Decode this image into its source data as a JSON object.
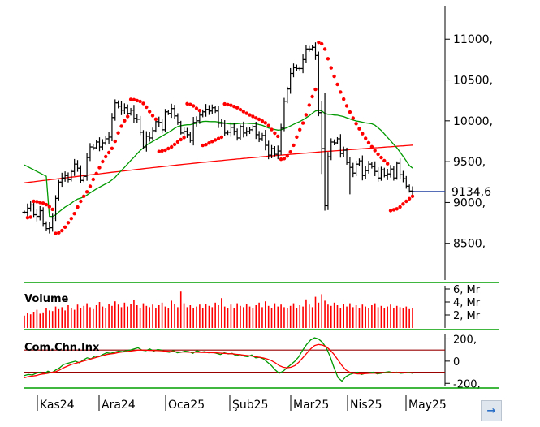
{
  "chart_data": [
    {
      "type": "ohlc",
      "ylim": [
        8050,
        11400
      ],
      "ytick_labels": [
        "11000,",
        "10500,",
        "10000,",
        "9500,",
        "9000,",
        "8500,"
      ],
      "ytick_values": [
        11000,
        10500,
        10000,
        9500,
        9000,
        8500
      ],
      "last_value": 9134.6,
      "last_value_label": "9134,6",
      "x_labels": [
        "Kas24",
        "Ara24",
        "Oca25",
        "Şub25",
        "Mar25",
        "Nis25",
        "May25"
      ],
      "close": [
        8880,
        8930,
        8970,
        8850,
        8830,
        8900,
        8740,
        8680,
        8690,
        8810,
        9050,
        9250,
        9300,
        9330,
        9280,
        9380,
        9470,
        9420,
        9270,
        9320,
        9550,
        9680,
        9670,
        9740,
        9680,
        9730,
        9780,
        9800,
        10040,
        10220,
        10180,
        10130,
        10160,
        10090,
        10130,
        10030,
        10020,
        9860,
        9680,
        9810,
        9790,
        9880,
        9990,
        9980,
        9890,
        10110,
        10090,
        10150,
        10060,
        9980,
        9850,
        9870,
        9830,
        9760,
        9980,
        10000,
        10070,
        10110,
        10140,
        10120,
        10160,
        10120,
        9970,
        9970,
        9850,
        9860,
        9920,
        9870,
        9790,
        9930,
        9850,
        9870,
        9890,
        9930,
        9830,
        9780,
        9820,
        9700,
        9580,
        9660,
        9590,
        9630,
        9910,
        10240,
        10390,
        10580,
        10650,
        10640,
        10640,
        10750,
        10880,
        10880,
        10900,
        10800,
        10100,
        9660,
        8960,
        9560,
        9740,
        9730,
        9780,
        9600,
        9640,
        9490,
        9430,
        9360,
        9470,
        9510,
        9330,
        9390,
        9470,
        9440,
        9380,
        9300,
        9400,
        9330,
        9350,
        9410,
        9300,
        9480,
        9340,
        9290,
        9200,
        9140,
        9134.6
      ],
      "series": [
        {
          "name": "",
          "color": "#ff0000",
          "style": "line",
          "period": 200
        },
        {
          "name": "",
          "color": "#009900",
          "style": "line",
          "period": 50
        },
        {
          "name": "",
          "color": "#ff0000",
          "style": "dots",
          "kind": "parabolic-sar"
        }
      ]
    },
    {
      "type": "bar",
      "title": "Volume",
      "ytick_labels": [
        "6, Mr",
        "4, Mr",
        "2, Mr"
      ],
      "ytick_values": [
        6,
        4,
        2
      ],
      "ylim": [
        0,
        6.5
      ],
      "unit": "Mr",
      "color": "#ff0000",
      "values": [
        1.9,
        2.3,
        2.1,
        2.5,
        2.8,
        2.2,
        2.4,
        3.0,
        2.7,
        2.6,
        3.3,
        2.9,
        3.2,
        2.7,
        3.5,
        3.1,
        2.8,
        3.6,
        3.0,
        3.4,
        3.8,
        3.2,
        2.9,
        3.5,
        4.0,
        3.3,
        3.0,
        3.7,
        3.4,
        4.1,
        3.6,
        3.2,
        3.9,
        3.3,
        3.7,
        4.3,
        3.5,
        3.1,
        3.8,
        3.4,
        3.2,
        3.6,
        3.0,
        3.5,
        3.9,
        3.3,
        3.0,
        4.2,
        3.7,
        3.2,
        5.6,
        3.8,
        3.2,
        3.5,
        3.0,
        3.3,
        3.6,
        3.1,
        3.7,
        3.4,
        3.2,
        3.9,
        3.5,
        4.6,
        3.3,
        3.0,
        3.6,
        3.1,
        3.8,
        3.4,
        3.2,
        3.7,
        3.3,
        3.0,
        3.5,
        3.9,
        3.2,
        4.1,
        3.4,
        3.1,
        3.8,
        3.3,
        3.6,
        3.2,
        3.0,
        3.4,
        3.8,
        3.1,
        3.5,
        3.3,
        4.4,
        3.6,
        3.2,
        4.8,
        3.9,
        5.2,
        4.2,
        3.6,
        3.4,
        3.9,
        3.5,
        3.1,
        3.7,
        3.3,
        3.8,
        3.2,
        3.5,
        3.0,
        3.6,
        3.3,
        3.1,
        3.5,
        3.8,
        3.2,
        3.4,
        3.0,
        3.3,
        3.6,
        3.1,
        3.4,
        3.2,
        3.0,
        3.3,
        2.9,
        3.1
      ]
    },
    {
      "type": "line",
      "title": "Com.Chn.Inx",
      "ylim": [
        -220,
        240
      ],
      "ytick_labels": [
        "200,",
        "0",
        "-200,"
      ],
      "ytick_values": [
        200,
        0,
        -200
      ],
      "reference_lines": [
        100,
        -100
      ],
      "reference_color": "#990000",
      "series": [
        {
          "name": "",
          "color": "#009900",
          "values": [
            -130,
            -120,
            -125,
            -110,
            -100,
            -115,
            -90,
            -105,
            -80,
            -60,
            -30,
            -20,
            -10,
            0,
            -15,
            10,
            30,
            20,
            45,
            40,
            60,
            75,
            70,
            80,
            90,
            85,
            95,
            100,
            110,
            120,
            100,
            95,
            110,
            90,
            105,
            100,
            85,
            80,
            95,
            75,
            80,
            90,
            85,
            70,
            95,
            80,
            85,
            75,
            80,
            70,
            60,
            75,
            65,
            70,
            50,
            60,
            45,
            40,
            55,
            30,
            35,
            20,
            -10,
            -40,
            -80,
            -110,
            -90,
            -60,
            -30,
            0,
            40,
            100,
            150,
            190,
            210,
            200,
            170,
            120,
            40,
            -60,
            -150,
            -180,
            -140,
            -120,
            -110,
            -100,
            -120,
            -110,
            -105,
            -100,
            -115,
            -110,
            -100,
            -95,
            -105,
            -100,
            -110,
            -105,
            -100,
            -110
          ]
        },
        {
          "name": "",
          "color": "#ff0000",
          "values": [
            -150,
            -140,
            -135,
            -130,
            -120,
            -115,
            -110,
            -100,
            -95,
            -80,
            -60,
            -45,
            -30,
            -20,
            -10,
            0,
            10,
            20,
            30,
            40,
            50,
            60,
            65,
            70,
            78,
            82,
            85,
            90,
            95,
            100,
            100,
            98,
            97,
            96,
            95,
            93,
            90,
            88,
            86,
            84,
            82,
            82,
            81,
            80,
            80,
            79,
            78,
            77,
            76,
            75,
            72,
            70,
            68,
            66,
            62,
            58,
            54,
            50,
            46,
            40,
            35,
            28,
            18,
            5,
            -15,
            -40,
            -55,
            -60,
            -55,
            -40,
            -10,
            30,
            70,
            110,
            140,
            150,
            145,
            130,
            100,
            60,
            10,
            -40,
            -80,
            -100,
            -110,
            -115,
            -115,
            -112,
            -110,
            -108,
            -108,
            -106,
            -105,
            -104,
            -104,
            -103,
            -103,
            -104,
            -105,
            -106
          ]
        }
      ]
    }
  ]
}
